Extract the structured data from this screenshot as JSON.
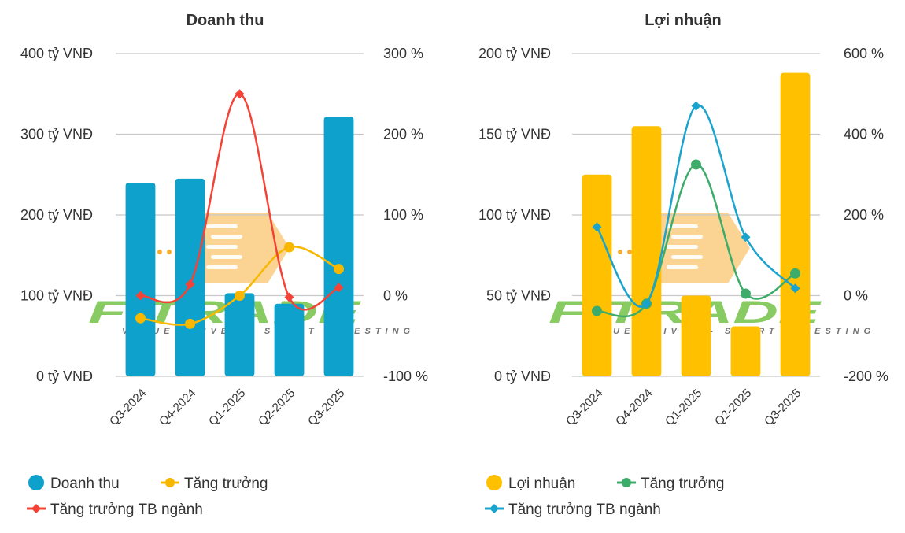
{
  "chart_data": [
    {
      "type": "bar",
      "title": "Doanh thu",
      "categories": [
        "Q3-2024",
        "Q4-2024",
        "Q1-2025",
        "Q2-2025",
        "Q3-2025"
      ],
      "left_axis": {
        "ticks": [
          "400 tỷ VNĐ",
          "300 tỷ VNĐ",
          "200 tỷ VNĐ",
          "100 tỷ VNĐ",
          "0 tỷ VNĐ"
        ],
        "range": [
          0,
          400
        ]
      },
      "right_axis": {
        "ticks": [
          "300 %",
          "200 %",
          "100 %",
          "0 %",
          "-100 %"
        ],
        "range": [
          -100,
          300
        ]
      },
      "series": [
        {
          "name": "Doanh thu",
          "kind": "bar",
          "axis": "left",
          "color": "#0ea1cc",
          "values": [
            240,
            245,
            103,
            90,
            322
          ]
        },
        {
          "name": "Tăng trưởng",
          "kind": "line",
          "axis": "right",
          "color": "#f9b800",
          "marker": "circle",
          "values": [
            -28,
            -35,
            0,
            60,
            33
          ]
        },
        {
          "name": "Tăng trưởng TB ngành",
          "kind": "line",
          "axis": "right",
          "color": "#f44336",
          "marker": "diamond",
          "values": [
            0,
            14,
            250,
            -2,
            10
          ]
        }
      ]
    },
    {
      "type": "bar",
      "title": "Lợi nhuận",
      "categories": [
        "Q3-2024",
        "Q4-2024",
        "Q1-2025",
        "Q2-2025",
        "Q3-2025"
      ],
      "left_axis": {
        "ticks": [
          "200 tỷ VNĐ",
          "150 tỷ VNĐ",
          "100 tỷ VNĐ",
          "50 tỷ VNĐ",
          "0 tỷ VNĐ"
        ],
        "range": [
          0,
          200
        ]
      },
      "right_axis": {
        "ticks": [
          "600 %",
          "400 %",
          "200 %",
          "0 %",
          "-200 %"
        ],
        "range": [
          -200,
          600
        ]
      },
      "series": [
        {
          "name": "Lợi nhuận",
          "kind": "bar",
          "axis": "left",
          "color": "#ffc000",
          "values": [
            125,
            155,
            50,
            31,
            188
          ]
        },
        {
          "name": "Tăng trưởng",
          "kind": "line",
          "axis": "right",
          "color": "#3dac6a",
          "marker": "circle",
          "values": [
            -38,
            -20,
            325,
            5,
            55
          ]
        },
        {
          "name": "Tăng trưởng TB ngành",
          "kind": "line",
          "axis": "right",
          "color": "#1aa3cc",
          "marker": "diamond",
          "values": [
            170,
            -20,
            470,
            145,
            18
          ]
        }
      ]
    }
  ]
}
